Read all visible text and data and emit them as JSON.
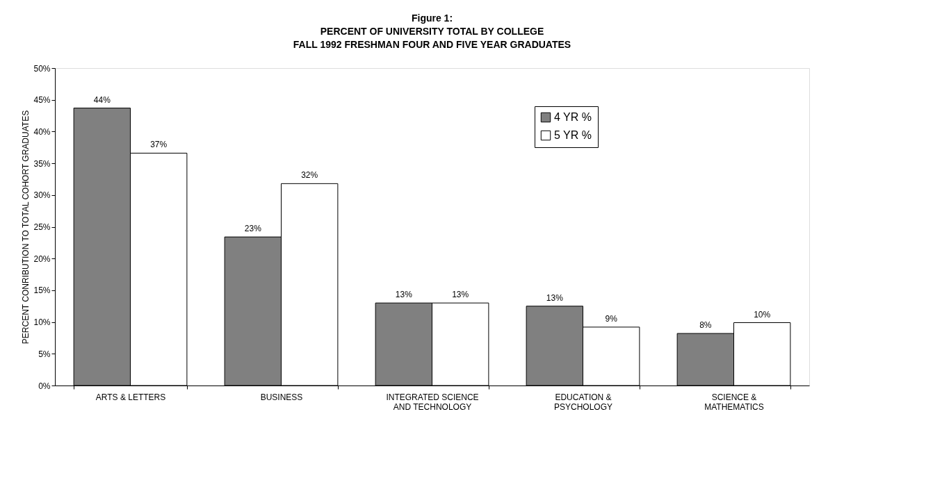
{
  "chart_data": {
    "type": "bar",
    "title": "Figure 1:",
    "subtitle": "PERCENT OF UNIVERSITY TOTAL BY COLLEGE\nFALL 1992 FRESHMAN FOUR AND FIVE YEAR GRADUATES",
    "ylabel": "PERCENT CONRIBUTION TO TOTAL COHORT GRADUATES",
    "categories": [
      "ARTS & LETTERS",
      "BUSINESS",
      "INTEGRATED SCIENCE AND TECHNOLOGY",
      "EDUCATION & PSYCHOLOGY",
      "SCIENCE & MATHEMATICS"
    ],
    "series": [
      {
        "name": "4 YR %",
        "color": "#808080",
        "values": [
          43.7,
          23.4,
          13.0,
          12.5,
          8.2
        ],
        "value_labels": [
          "44%",
          "23%",
          "13%",
          "13%",
          "8%"
        ]
      },
      {
        "name": "5 YR %",
        "color": "#ffffff",
        "values": [
          36.6,
          31.8,
          13.0,
          9.2,
          9.9
        ],
        "value_labels": [
          "37%",
          "32%",
          "13%",
          "9%",
          "10%"
        ]
      }
    ],
    "ylim": [
      0,
      50
    ],
    "yticks": [
      {
        "value": 0,
        "label": "0%"
      },
      {
        "value": 5,
        "label": "5%"
      },
      {
        "value": 10,
        "label": "10%"
      },
      {
        "value": 15,
        "label": "15%"
      },
      {
        "value": 20,
        "label": "20%"
      },
      {
        "value": 25,
        "label": "25%"
      },
      {
        "value": 30,
        "label": "30%"
      },
      {
        "value": 35,
        "label": "35%"
      },
      {
        "value": 40,
        "label": "40%"
      },
      {
        "value": 45,
        "label": "45%"
      },
      {
        "value": 50,
        "label": "50%"
      }
    ],
    "legend": "top right",
    "grid": false
  }
}
